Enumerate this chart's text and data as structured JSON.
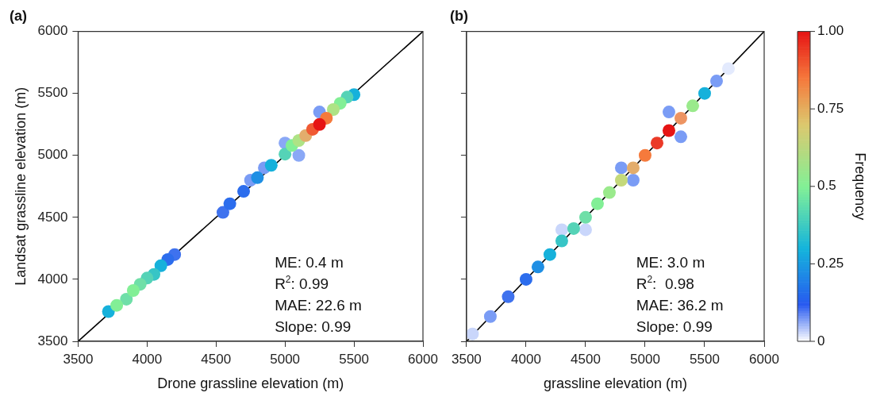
{
  "chart_data": [
    {
      "type": "scatter",
      "title": "(a)",
      "xlabel": "Drone grassline elevation (m)",
      "ylabel": "Landsat grassline elevation (m)",
      "xlim": [
        3500,
        6000
      ],
      "ylim": [
        3500,
        6000
      ],
      "xticks": [
        3500,
        4000,
        4500,
        5000,
        5500,
        6000
      ],
      "yticks": [
        3500,
        4000,
        4500,
        5000,
        5500,
        6000
      ],
      "annotations": [
        "ME: 0.4 m",
        "R$^{2}$: 0.99",
        "MAE: 22.6 m",
        "Slope: 0.99"
      ],
      "series": [
        {
          "marker": "circle",
          "x": [
            4850,
            5000,
            5100,
            4750,
            5250,
            3720,
            4200,
            4550,
            4150,
            4600,
            4700,
            4800,
            4100,
            5500,
            4900,
            4050,
            4000,
            5450,
            3850,
            3950,
            5000,
            5400,
            3780,
            3900,
            5050,
            5350,
            5100,
            5150,
            5300,
            5200,
            5250
          ],
          "values": [
            4900,
            5100,
            5000,
            4800,
            5350,
            3740,
            4200,
            4540,
            4160,
            4610,
            4710,
            4820,
            4110,
            5490,
            4920,
            4040,
            4010,
            5470,
            3840,
            3960,
            5010,
            5420,
            3790,
            3910,
            5080,
            5370,
            5120,
            5160,
            5300,
            5210,
            5250
          ],
          "colors": [
            "#7a9cf5",
            "#8aa8f6",
            "#8aa8f6",
            "#7a9cf5",
            "#7a9cf5",
            "#16b1db",
            "#3f72ee",
            "#3f72ee",
            "#2c6ded",
            "#2c6ded",
            "#2c6ded",
            "#1f8fe4",
            "#16b1db",
            "#16b1db",
            "#16b1db",
            "#37c5c6",
            "#55d3b7",
            "#55d3b7",
            "#6fdfa8",
            "#6fdfa8",
            "#55d3b7",
            "#82ef96",
            "#82ef96",
            "#82ef96",
            "#82ef96",
            "#aee385",
            "#aee385",
            "#e3ad6c",
            "#f57a3c",
            "#f05a33",
            "#e61414"
          ]
        },
        {
          "type": "line",
          "x": [
            3500,
            6000
          ],
          "values": [
            3500,
            6000
          ],
          "color": "#000000"
        }
      ]
    },
    {
      "type": "scatter",
      "title": "(b)",
      "xlabel": "grassline elevation (m)",
      "xlim": [
        3500,
        6000
      ],
      "ylim": [
        3500,
        6000
      ],
      "xticks": [
        3500,
        4000,
        4500,
        5000,
        5500,
        6000
      ],
      "yticks": [
        3500,
        4000,
        4500,
        5000,
        5500,
        6000
      ],
      "tick_labels": "x",
      "clim": [
        0,
        1
      ],
      "cticks": [
        0,
        0.25,
        0.5,
        0.75,
        {
          "value": 1,
          "label": "1.00"
        }
      ],
      "clabel": "Frequency",
      "annotations": [
        "ME: 3.0 m",
        "R$^{2}$:  0.98",
        "MAE: 36.2 m",
        "Slope: 0.99"
      ],
      "series": [
        {
          "marker": "circle",
          "x": [
            5700,
            4300,
            4500,
            3550,
            3700,
            4800,
            4900,
            5200,
            5300,
            5600,
            3850,
            4000,
            4100,
            4200,
            5500,
            4300,
            4400,
            4500,
            4600,
            4700,
            5400,
            4800,
            5300,
            4900,
            5000,
            5100,
            5200
          ],
          "values": [
            5700,
            4400,
            4400,
            3560,
            3700,
            4900,
            4800,
            5350,
            5150,
            5600,
            3860,
            4000,
            4100,
            4200,
            5500,
            4310,
            4410,
            4500,
            4610,
            4700,
            5400,
            4800,
            5300,
            4900,
            5000,
            5100,
            5200
          ],
          "colors": [
            "#e3eafd",
            "#c9d6fb",
            "#c9d6fb",
            "#c9d6fb",
            "#7a9cf5",
            "#7a9cf5",
            "#7a9cf5",
            "#7a9cf5",
            "#7a9cf5",
            "#7a9cf5",
            "#3f72ee",
            "#2c6ded",
            "#1f8fe4",
            "#16b1db",
            "#16b1db",
            "#37c5c6",
            "#55d3b7",
            "#6fdfa8",
            "#82ef96",
            "#9aea8c",
            "#9aea8c",
            "#c4d97b",
            "#ed9462",
            "#e3ad6c",
            "#f57a3c",
            "#eb3a28",
            "#e61414"
          ]
        },
        {
          "type": "line",
          "x": [
            3500,
            6000
          ],
          "values": [
            3500,
            6000
          ],
          "color": "#000000"
        }
      ]
    }
  ]
}
